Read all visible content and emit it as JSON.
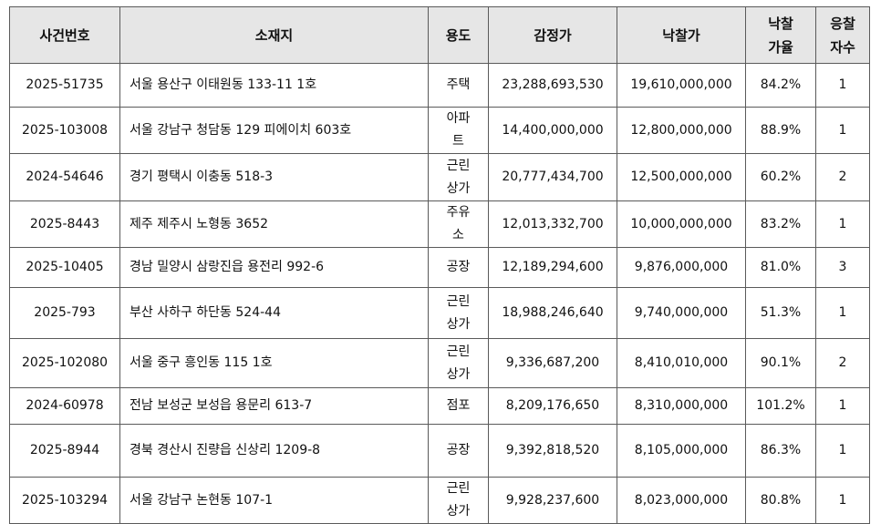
{
  "table": {
    "headers": [
      "사건번호",
      "소재지",
      "용도",
      "감정가",
      "낙찰가",
      "낙찰\n가율",
      "응찰\n자수"
    ],
    "rows": [
      [
        "2025-51735",
        "서울 용산구 이태원동 133-11 1호",
        "주택",
        "23,288,693,530",
        "19,610,000,000",
        "84.2%",
        "1"
      ],
      [
        "2025-103008",
        "서울 강남구 청담동 129 피에이치 603호",
        "아파트",
        "14,400,000,000",
        "12,800,000,000",
        "88.9%",
        "1"
      ],
      [
        "2024-54646",
        "경기 평택시 이충동 518-3",
        "근린상가",
        "20,777,434,700",
        "12,500,000,000",
        "60.2%",
        "2"
      ],
      [
        "2025-8443",
        "제주 제주시 노형동 3652",
        "주유소",
        "12,013,332,700",
        "10,000,000,000",
        "83.2%",
        "1"
      ],
      [
        "2025-10405",
        "경남 밀양시 삼랑진읍 용전리 992-6",
        "공장",
        "12,189,294,600",
        "9,876,000,000",
        "81.0%",
        "3"
      ],
      [
        "2025-793",
        "부산 사하구 하단동 524-44",
        "근린상가",
        "18,988,246,640",
        "9,740,000,000",
        "51.3%",
        "1"
      ],
      [
        "2025-102080",
        "서울 중구 흥인동 115 1호",
        "근린상가",
        "9,336,687,200",
        "8,410,010,000",
        "90.1%",
        "2"
      ],
      [
        "2024-60978",
        "전남 보성군 보성읍 용문리 613-7",
        "점포",
        "8,209,176,650",
        "8,310,000,000",
        "101.2%",
        "1"
      ],
      [
        "2025-8944",
        "경북 경산시 진량읍 신상리 1209-8",
        "공장",
        "9,392,818,520",
        "8,105,000,000",
        "86.3%",
        "1"
      ],
      [
        "2025-103294",
        "서울 강남구 논현동 107-1",
        "근린상가",
        "9,928,237,600",
        "8,023,000,000",
        "80.8%",
        "1"
      ]
    ]
  }
}
